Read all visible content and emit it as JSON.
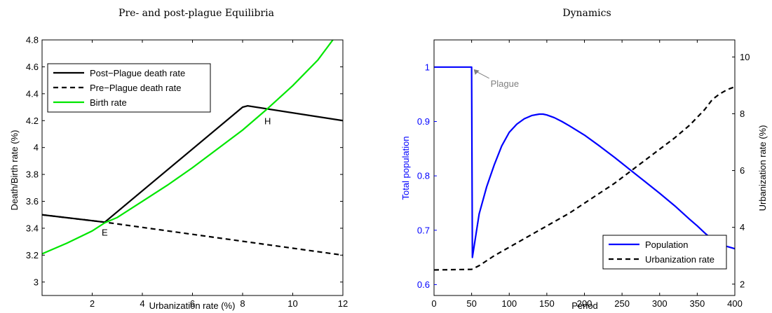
{
  "chart_data": [
    {
      "type": "line",
      "title": "Pre- and post-plague Equilibria",
      "xlabel": "Urbanization rate (%)",
      "ylabel": "Death/Birth rate (%)",
      "xlim": [
        0,
        12
      ],
      "ylim": [
        2.9,
        4.8
      ],
      "xticks": [
        2,
        4,
        6,
        8,
        10,
        12
      ],
      "yticks": [
        3,
        3.2,
        3.4,
        3.6,
        3.8,
        4,
        4.2,
        4.4,
        4.6,
        4.8
      ],
      "legend_position": "upper-left",
      "series": [
        {
          "name": "Post−Plague death rate",
          "color": "#000000",
          "dash": "solid",
          "x": [
            0,
            2.5,
            8,
            8.2,
            12
          ],
          "y": [
            3.5,
            3.445,
            4.3,
            4.31,
            4.2
          ]
        },
        {
          "name": "Pre−Plague death rate",
          "color": "#000000",
          "dash": "dashed",
          "x": [
            0,
            2.5,
            12
          ],
          "y": [
            3.5,
            3.445,
            3.2
          ]
        },
        {
          "name": "Birth rate",
          "color": "#00e600",
          "dash": "solid",
          "x": [
            0,
            1,
            2,
            2.5,
            3,
            4,
            5,
            6,
            7,
            8,
            9,
            10,
            11,
            11.6
          ],
          "y": [
            3.21,
            3.29,
            3.38,
            3.44,
            3.48,
            3.6,
            3.72,
            3.85,
            3.99,
            4.13,
            4.29,
            4.46,
            4.65,
            4.8
          ]
        }
      ],
      "annotations": [
        {
          "text": "E",
          "x": 2.5,
          "y": 3.37
        },
        {
          "text": "H",
          "x": 9.0,
          "y": 4.2
        }
      ]
    },
    {
      "type": "line",
      "title": "Dynamics",
      "xlabel": "Period",
      "ylabel_left": "Total population",
      "ylabel_right": "Urbanization rate (%)",
      "xlim": [
        0,
        400
      ],
      "ylim_left": [
        0.58,
        1.05
      ],
      "ylim_right": [
        1.6,
        10.6
      ],
      "xticks": [
        0,
        50,
        100,
        150,
        200,
        250,
        300,
        350,
        400
      ],
      "yticks_left": [
        0.6,
        0.7,
        0.8,
        0.9,
        1
      ],
      "yticks_right": [
        2,
        4,
        6,
        8,
        10
      ],
      "left_axis_color": "#0000ff",
      "legend_position": "lower-right",
      "series": [
        {
          "name": "Population",
          "axis": "left",
          "color": "#0000ff",
          "dash": "solid",
          "x": [
            0,
            50,
            50,
            51,
            60,
            70,
            80,
            90,
            100,
            110,
            120,
            130,
            140,
            145,
            150,
            160,
            170,
            180,
            200,
            220,
            240,
            260,
            280,
            300,
            320,
            340,
            350,
            360,
            370,
            380,
            390,
            400
          ],
          "y": [
            1,
            1,
            0.99,
            0.65,
            0.73,
            0.78,
            0.82,
            0.855,
            0.88,
            0.895,
            0.905,
            0.911,
            0.9135,
            0.9135,
            0.912,
            0.907,
            0.9,
            0.892,
            0.875,
            0.855,
            0.834,
            0.812,
            0.79,
            0.768,
            0.745,
            0.72,
            0.708,
            0.695,
            0.683,
            0.675,
            0.67,
            0.666
          ]
        },
        {
          "name": "Urbanization rate",
          "axis": "right",
          "color": "#000000",
          "dash": "dashed",
          "x": [
            0,
            50,
            60,
            80,
            100,
            120,
            140,
            160,
            180,
            200,
            220,
            240,
            260,
            280,
            300,
            320,
            340,
            360,
            370,
            380,
            390,
            400
          ],
          "y": [
            2.5,
            2.52,
            2.65,
            3.0,
            3.3,
            3.6,
            3.9,
            4.2,
            4.5,
            4.85,
            5.2,
            5.55,
            5.95,
            6.35,
            6.75,
            7.15,
            7.6,
            8.15,
            8.5,
            8.7,
            8.85,
            8.95
          ]
        }
      ],
      "annotations": [
        {
          "text": "Plague",
          "x": 50,
          "y": 1,
          "color": "#808080"
        }
      ]
    }
  ]
}
